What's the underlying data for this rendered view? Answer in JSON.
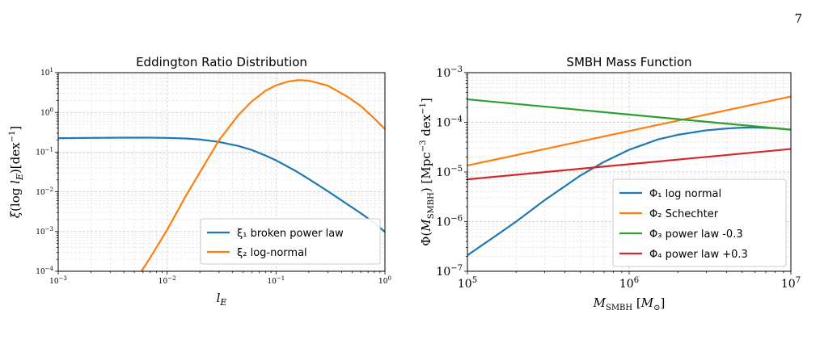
{
  "page": {
    "number": "7"
  },
  "chart_data": [
    {
      "type": "line",
      "title": "Eddington Ratio Distribution",
      "xlabel": "l_E",
      "ylabel": "ξ(log l_E) [dex⁻¹]",
      "xscale": "log",
      "yscale": "log",
      "xlim": [
        0.001,
        1
      ],
      "ylim": [
        0.0001,
        10
      ],
      "grid": true,
      "legend_position": "lower-right",
      "x_ticks": [
        {
          "value": 0.001,
          "base": "10",
          "exp": "−3"
        },
        {
          "value": 0.01,
          "base": "10",
          "exp": "−2"
        },
        {
          "value": 0.1,
          "base": "10",
          "exp": "−1"
        },
        {
          "value": 1,
          "base": "10",
          "exp": "0"
        }
      ],
      "y_ticks": [
        {
          "value": 0.0001,
          "base": "10",
          "exp": "−4"
        },
        {
          "value": 0.001,
          "base": "10",
          "exp": "−3"
        },
        {
          "value": 0.01,
          "base": "10",
          "exp": "−2"
        },
        {
          "value": 0.1,
          "base": "10",
          "exp": "−1"
        },
        {
          "value": 1,
          "base": "10",
          "exp": "0"
        },
        {
          "value": 10,
          "base": "10",
          "exp": "1"
        }
      ],
      "series": [
        {
          "name": "ξ₁ broken power law",
          "color": "#1f77b4",
          "x": [
            0.001,
            0.002,
            0.004,
            0.007,
            0.01,
            0.015,
            0.02,
            0.03,
            0.045,
            0.06,
            0.08,
            0.1,
            0.15,
            0.2,
            0.3,
            0.45,
            0.6,
            0.8,
            1.0
          ],
          "y": [
            0.224,
            0.228,
            0.231,
            0.231,
            0.228,
            0.22,
            0.208,
            0.18,
            0.143,
            0.113,
            0.082,
            0.062,
            0.034,
            0.021,
            0.0103,
            0.0049,
            0.0029,
            0.00165,
            0.00098
          ]
        },
        {
          "name": "ξ₂ log-normal",
          "color": "#ff7f0e",
          "x": [
            0.0058,
            0.007,
            0.01,
            0.015,
            0.02,
            0.03,
            0.045,
            0.06,
            0.08,
            0.1,
            0.13,
            0.16,
            0.2,
            0.3,
            0.45,
            0.6,
            0.8,
            1.0
          ],
          "y": [
            0.0001,
            0.00022,
            0.0011,
            0.0083,
            0.031,
            0.2,
            0.85,
            1.9,
            3.5,
            4.8,
            6.0,
            6.5,
            6.3,
            4.7,
            2.5,
            1.45,
            0.7,
            0.38
          ]
        }
      ]
    },
    {
      "type": "line",
      "title": "SMBH Mass Function",
      "xlabel": "M_SMBH [M⊙]",
      "ylabel": "Φ(M_SMBH) [Mpc⁻³ dex⁻¹]",
      "xscale": "log",
      "yscale": "log",
      "xlim": [
        100000,
        10000000
      ],
      "ylim": [
        1e-07,
        0.001
      ],
      "grid": true,
      "legend_position": "lower-right",
      "x_ticks": [
        {
          "value": 100000,
          "base": "10",
          "exp": "5"
        },
        {
          "value": 1000000,
          "base": "10",
          "exp": "6"
        },
        {
          "value": 10000000,
          "base": "10",
          "exp": "7"
        }
      ],
      "y_ticks": [
        {
          "value": 1e-07,
          "base": "10",
          "exp": "−7"
        },
        {
          "value": 1e-06,
          "base": "10",
          "exp": "−6"
        },
        {
          "value": 1e-05,
          "base": "10",
          "exp": "−5"
        },
        {
          "value": 0.0001,
          "base": "10",
          "exp": "−4"
        },
        {
          "value": 0.001,
          "base": "10",
          "exp": "−3"
        }
      ],
      "series": [
        {
          "name": "Φ₁ log normal",
          "color": "#1f77b4",
          "x": [
            100000,
            150000,
            200000,
            300000,
            500000,
            700000,
            1000000,
            1500000,
            2000000,
            3000000,
            4000000,
            5000000,
            6000000,
            8000000,
            10000000
          ],
          "y": [
            2.1e-07,
            5.2e-07,
            1e-06,
            2.7e-06,
            8.5e-06,
            1.6e-05,
            2.8e-05,
            4.5e-05,
            5.6e-05,
            6.9e-05,
            7.5e-05,
            7.8e-05,
            7.85e-05,
            7.6e-05,
            7.1e-05
          ]
        },
        {
          "name": "Φ₂ Schechter",
          "color": "#ff7f0e",
          "x": [
            100000,
            10000000
          ],
          "y": [
            1.35e-05,
            0.00033
          ]
        },
        {
          "name": "Φ₃ power law -0.3",
          "color": "#2ca02c",
          "x": [
            100000,
            10000000
          ],
          "y": [
            0.00029,
            7.1e-05
          ]
        },
        {
          "name": "Φ₄ power law +0.3",
          "color": "#d62728",
          "x": [
            100000,
            10000000
          ],
          "y": [
            7.1e-06,
            2.9e-05
          ]
        }
      ]
    }
  ]
}
